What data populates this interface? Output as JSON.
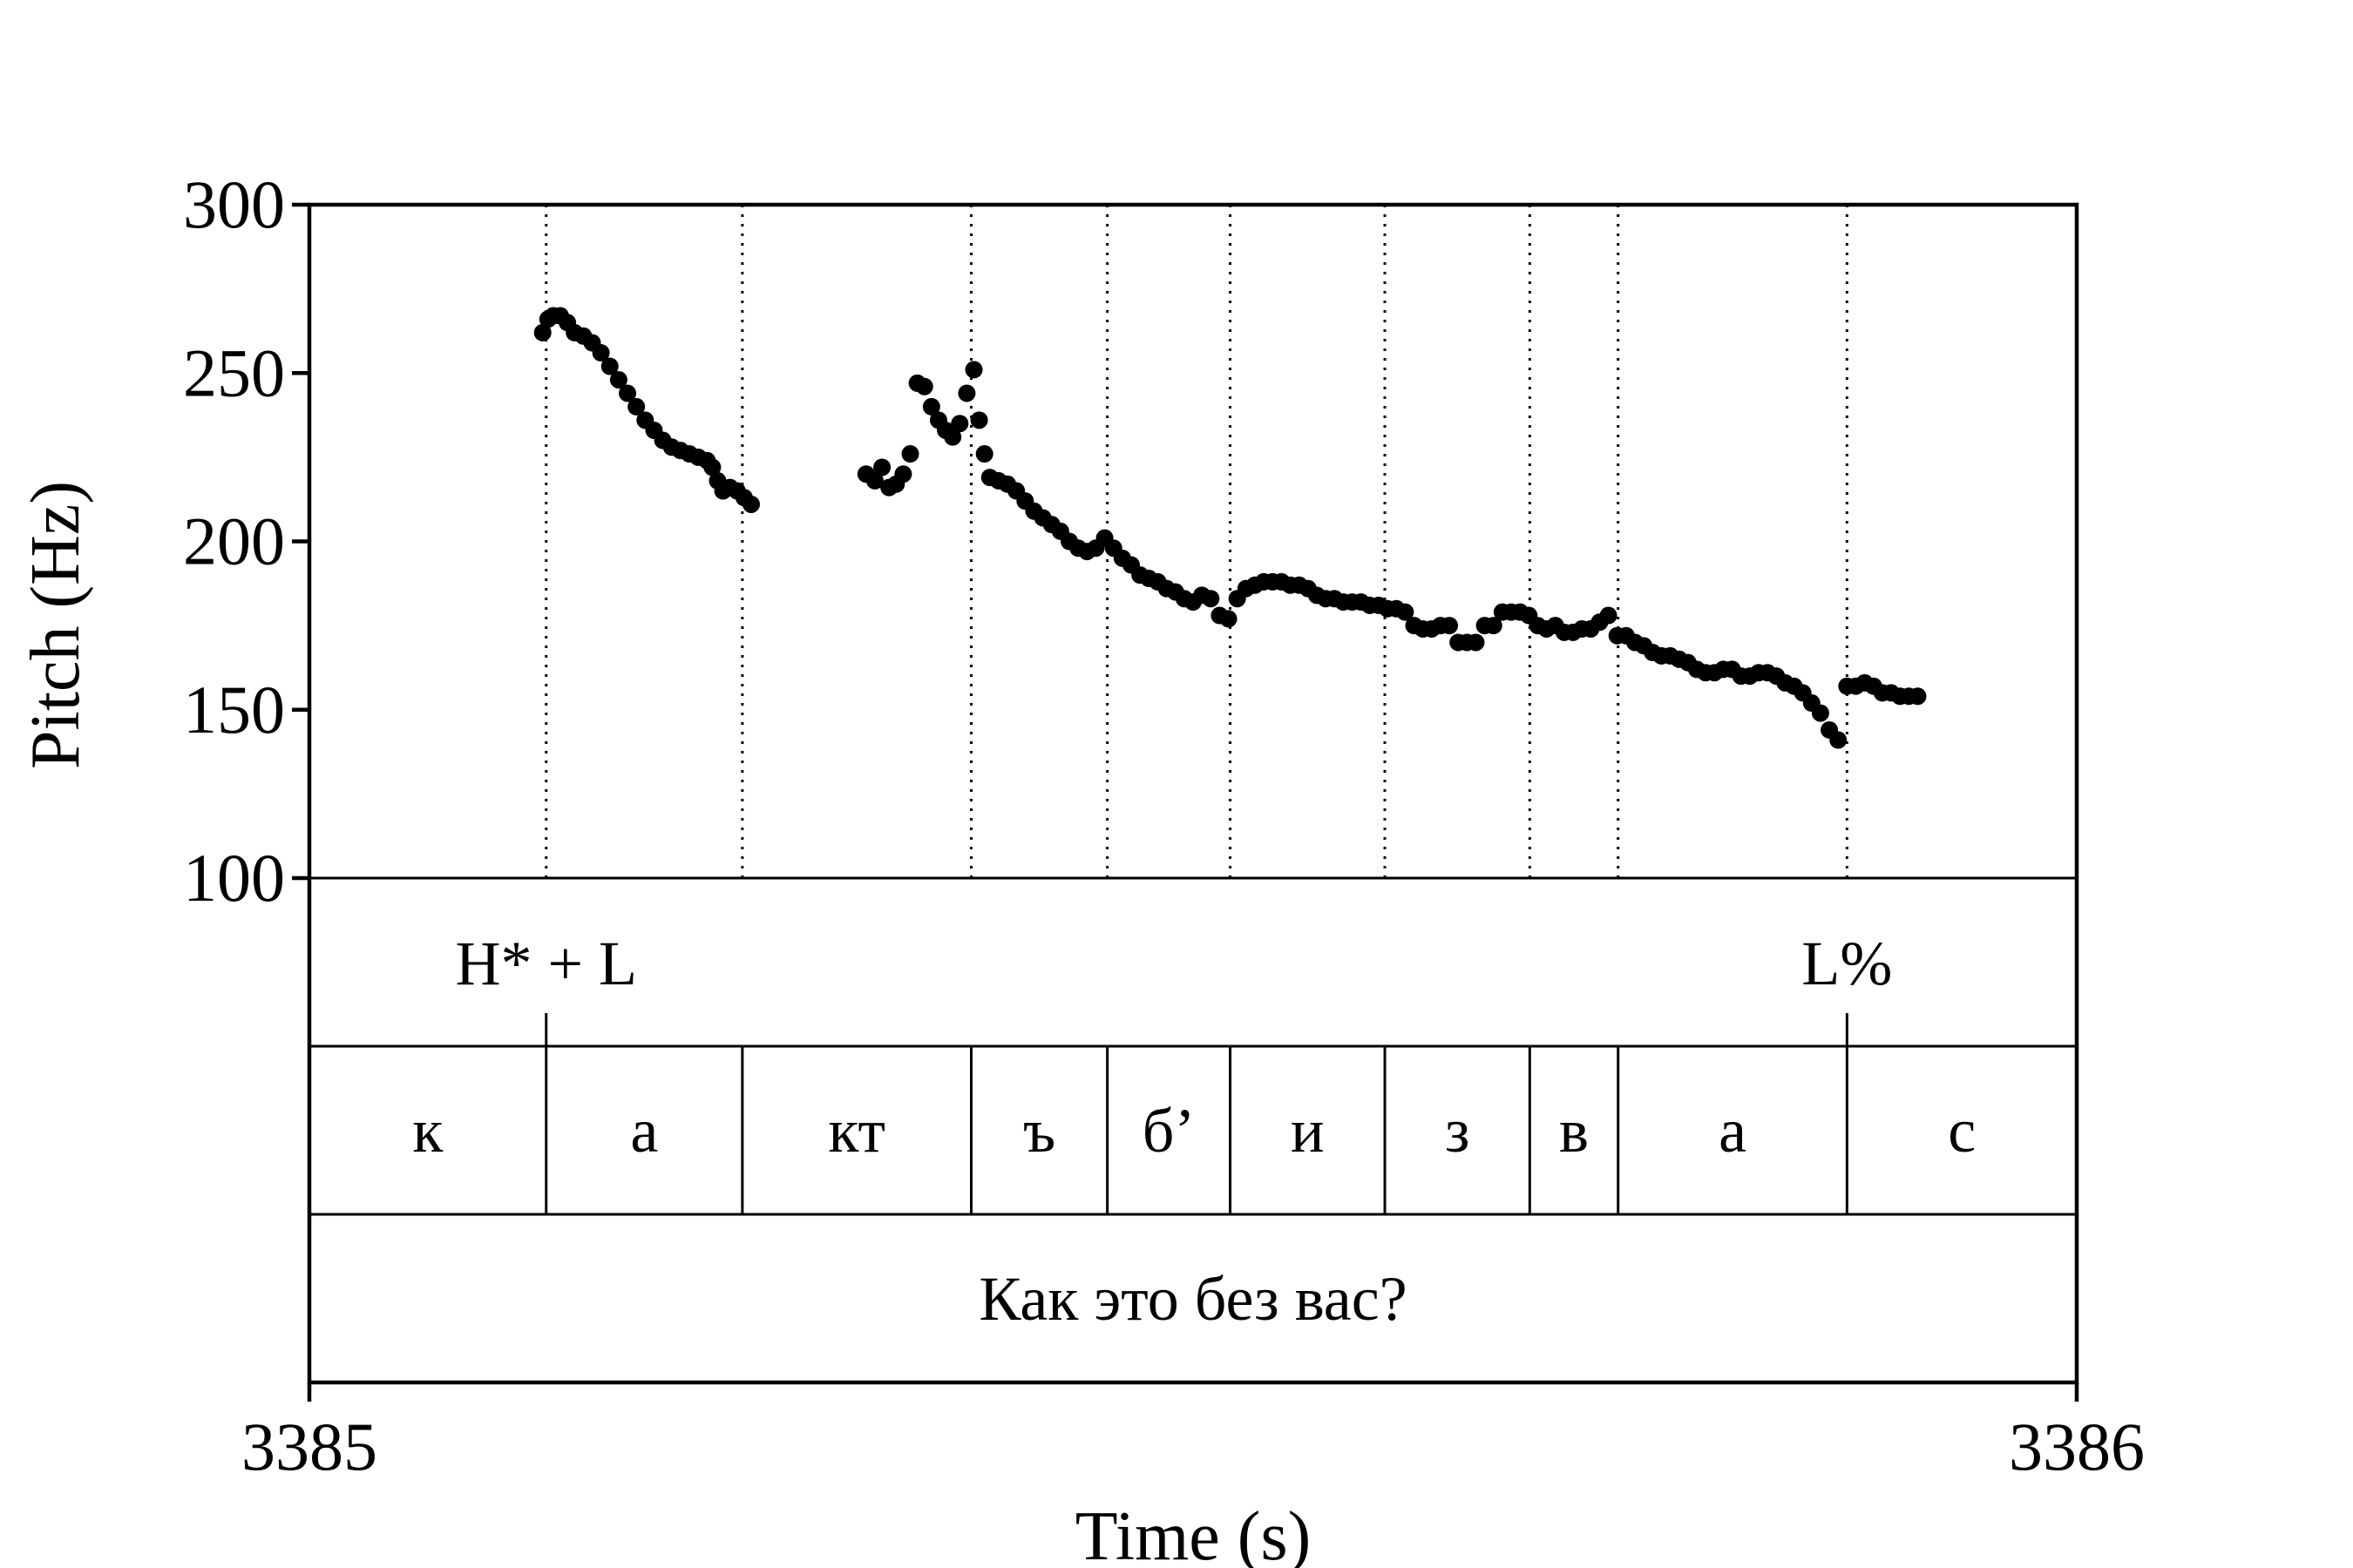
{
  "chart_data": {
    "type": "scatter",
    "title": "",
    "xlabel": "Time (s)",
    "ylabel": "Pitch (Hz)",
    "xlim": [
      3385,
      3386
    ],
    "ylim": [
      100,
      300
    ],
    "x_ticks": [
      "3385",
      "3386"
    ],
    "y_ticks": [
      "100",
      "150",
      "200",
      "250",
      "300"
    ],
    "grid": false,
    "point_color": "#000000",
    "pitch_contour": [
      {
        "t": 3385.132,
        "hz": 262
      },
      {
        "t": 3385.135,
        "hz": 266
      },
      {
        "t": 3385.138,
        "hz": 267
      },
      {
        "t": 3385.142,
        "hz": 267
      },
      {
        "t": 3385.146,
        "hz": 265
      },
      {
        "t": 3385.15,
        "hz": 262
      },
      {
        "t": 3385.155,
        "hz": 261
      },
      {
        "t": 3385.16,
        "hz": 259
      },
      {
        "t": 3385.165,
        "hz": 256
      },
      {
        "t": 3385.17,
        "hz": 252
      },
      {
        "t": 3385.175,
        "hz": 248
      },
      {
        "t": 3385.18,
        "hz": 244
      },
      {
        "t": 3385.185,
        "hz": 240
      },
      {
        "t": 3385.19,
        "hz": 236
      },
      {
        "t": 3385.195,
        "hz": 233
      },
      {
        "t": 3385.2,
        "hz": 230
      },
      {
        "t": 3385.205,
        "hz": 228
      },
      {
        "t": 3385.21,
        "hz": 227
      },
      {
        "t": 3385.215,
        "hz": 226
      },
      {
        "t": 3385.22,
        "hz": 225
      },
      {
        "t": 3385.225,
        "hz": 224
      },
      {
        "t": 3385.228,
        "hz": 222
      },
      {
        "t": 3385.231,
        "hz": 218
      },
      {
        "t": 3385.234,
        "hz": 215
      },
      {
        "t": 3385.238,
        "hz": 216
      },
      {
        "t": 3385.242,
        "hz": 215
      },
      {
        "t": 3385.246,
        "hz": 213
      },
      {
        "t": 3385.25,
        "hz": 211
      },
      {
        "t": 3385.315,
        "hz": 220
      },
      {
        "t": 3385.32,
        "hz": 218
      },
      {
        "t": 3385.324,
        "hz": 222
      },
      {
        "t": 3385.328,
        "hz": 216
      },
      {
        "t": 3385.332,
        "hz": 217
      },
      {
        "t": 3385.336,
        "hz": 220
      },
      {
        "t": 3385.34,
        "hz": 226
      },
      {
        "t": 3385.344,
        "hz": 247
      },
      {
        "t": 3385.348,
        "hz": 246
      },
      {
        "t": 3385.352,
        "hz": 240
      },
      {
        "t": 3385.356,
        "hz": 236
      },
      {
        "t": 3385.36,
        "hz": 233
      },
      {
        "t": 3385.364,
        "hz": 231
      },
      {
        "t": 3385.368,
        "hz": 235
      },
      {
        "t": 3385.372,
        "hz": 244
      },
      {
        "t": 3385.376,
        "hz": 251
      },
      {
        "t": 3385.379,
        "hz": 236
      },
      {
        "t": 3385.382,
        "hz": 226
      },
      {
        "t": 3385.385,
        "hz": 219
      },
      {
        "t": 3385.39,
        "hz": 218
      },
      {
        "t": 3385.395,
        "hz": 217
      },
      {
        "t": 3385.4,
        "hz": 215
      },
      {
        "t": 3385.405,
        "hz": 212
      },
      {
        "t": 3385.41,
        "hz": 209
      },
      {
        "t": 3385.415,
        "hz": 207
      },
      {
        "t": 3385.42,
        "hz": 205
      },
      {
        "t": 3385.425,
        "hz": 203
      },
      {
        "t": 3385.43,
        "hz": 200
      },
      {
        "t": 3385.435,
        "hz": 198
      },
      {
        "t": 3385.44,
        "hz": 197
      },
      {
        "t": 3385.445,
        "hz": 198
      },
      {
        "t": 3385.45,
        "hz": 201
      },
      {
        "t": 3385.455,
        "hz": 198
      },
      {
        "t": 3385.46,
        "hz": 195
      },
      {
        "t": 3385.465,
        "hz": 193
      },
      {
        "t": 3385.47,
        "hz": 190
      },
      {
        "t": 3385.475,
        "hz": 189
      },
      {
        "t": 3385.48,
        "hz": 188
      },
      {
        "t": 3385.485,
        "hz": 186
      },
      {
        "t": 3385.49,
        "hz": 185
      },
      {
        "t": 3385.495,
        "hz": 183
      },
      {
        "t": 3385.5,
        "hz": 182
      },
      {
        "t": 3385.505,
        "hz": 184
      },
      {
        "t": 3385.51,
        "hz": 183
      },
      {
        "t": 3385.515,
        "hz": 178
      },
      {
        "t": 3385.52,
        "hz": 177
      },
      {
        "t": 3385.525,
        "hz": 183
      },
      {
        "t": 3385.53,
        "hz": 186
      },
      {
        "t": 3385.535,
        "hz": 187
      },
      {
        "t": 3385.54,
        "hz": 188
      },
      {
        "t": 3385.545,
        "hz": 188
      },
      {
        "t": 3385.55,
        "hz": 188
      },
      {
        "t": 3385.555,
        "hz": 187
      },
      {
        "t": 3385.56,
        "hz": 187
      },
      {
        "t": 3385.565,
        "hz": 186
      },
      {
        "t": 3385.57,
        "hz": 184
      },
      {
        "t": 3385.575,
        "hz": 183
      },
      {
        "t": 3385.58,
        "hz": 183
      },
      {
        "t": 3385.585,
        "hz": 182
      },
      {
        "t": 3385.59,
        "hz": 182
      },
      {
        "t": 3385.595,
        "hz": 182
      },
      {
        "t": 3385.6,
        "hz": 181
      },
      {
        "t": 3385.605,
        "hz": 181
      },
      {
        "t": 3385.61,
        "hz": 180
      },
      {
        "t": 3385.615,
        "hz": 180
      },
      {
        "t": 3385.62,
        "hz": 179
      },
      {
        "t": 3385.625,
        "hz": 175
      },
      {
        "t": 3385.63,
        "hz": 174
      },
      {
        "t": 3385.635,
        "hz": 174
      },
      {
        "t": 3385.64,
        "hz": 175
      },
      {
        "t": 3385.645,
        "hz": 175
      },
      {
        "t": 3385.65,
        "hz": 170
      },
      {
        "t": 3385.655,
        "hz": 170
      },
      {
        "t": 3385.66,
        "hz": 170
      },
      {
        "t": 3385.665,
        "hz": 175
      },
      {
        "t": 3385.67,
        "hz": 175
      },
      {
        "t": 3385.675,
        "hz": 179
      },
      {
        "t": 3385.68,
        "hz": 179
      },
      {
        "t": 3385.685,
        "hz": 179
      },
      {
        "t": 3385.69,
        "hz": 178
      },
      {
        "t": 3385.695,
        "hz": 175
      },
      {
        "t": 3385.7,
        "hz": 174
      },
      {
        "t": 3385.705,
        "hz": 175
      },
      {
        "t": 3385.71,
        "hz": 173
      },
      {
        "t": 3385.715,
        "hz": 173
      },
      {
        "t": 3385.72,
        "hz": 174
      },
      {
        "t": 3385.725,
        "hz": 174
      },
      {
        "t": 3385.73,
        "hz": 176
      },
      {
        "t": 3385.735,
        "hz": 178
      },
      {
        "t": 3385.74,
        "hz": 172
      },
      {
        "t": 3385.745,
        "hz": 172
      },
      {
        "t": 3385.75,
        "hz": 170
      },
      {
        "t": 3385.755,
        "hz": 169
      },
      {
        "t": 3385.76,
        "hz": 167
      },
      {
        "t": 3385.765,
        "hz": 166
      },
      {
        "t": 3385.77,
        "hz": 166
      },
      {
        "t": 3385.775,
        "hz": 165
      },
      {
        "t": 3385.78,
        "hz": 164
      },
      {
        "t": 3385.785,
        "hz": 162
      },
      {
        "t": 3385.79,
        "hz": 161
      },
      {
        "t": 3385.795,
        "hz": 161
      },
      {
        "t": 3385.8,
        "hz": 162
      },
      {
        "t": 3385.805,
        "hz": 162
      },
      {
        "t": 3385.81,
        "hz": 160
      },
      {
        "t": 3385.815,
        "hz": 160
      },
      {
        "t": 3385.82,
        "hz": 161
      },
      {
        "t": 3385.825,
        "hz": 161
      },
      {
        "t": 3385.83,
        "hz": 160
      },
      {
        "t": 3385.835,
        "hz": 158
      },
      {
        "t": 3385.84,
        "hz": 157
      },
      {
        "t": 3385.845,
        "hz": 155
      },
      {
        "t": 3385.85,
        "hz": 152
      },
      {
        "t": 3385.855,
        "hz": 149
      },
      {
        "t": 3385.86,
        "hz": 144
      },
      {
        "t": 3385.865,
        "hz": 141
      },
      {
        "t": 3385.87,
        "hz": 157
      },
      {
        "t": 3385.875,
        "hz": 157
      },
      {
        "t": 3385.88,
        "hz": 158
      },
      {
        "t": 3385.885,
        "hz": 157
      },
      {
        "t": 3385.89,
        "hz": 155
      },
      {
        "t": 3385.895,
        "hz": 155
      },
      {
        "t": 3385.9,
        "hz": 154
      },
      {
        "t": 3385.905,
        "hz": 154
      },
      {
        "t": 3385.91,
        "hz": 154
      }
    ],
    "tone_tier": {
      "labels": [
        {
          "text": "H* + L",
          "t": 3385.134
        },
        {
          "text": "L%",
          "t": 3385.87
        }
      ],
      "boundaries": [
        3385.134,
        3385.87
      ]
    },
    "segment_tier": {
      "boundaries": [
        3385.134,
        3385.245,
        3385.3745,
        3385.4515,
        3385.521,
        3385.6085,
        3385.6905,
        3385.7405,
        3385.87
      ],
      "segments": [
        {
          "label": "к",
          "start": 3385.0,
          "end": 3385.134
        },
        {
          "label": "а",
          "start": 3385.134,
          "end": 3385.245
        },
        {
          "label": "кт",
          "start": 3385.245,
          "end": 3385.3745
        },
        {
          "label": "ъ",
          "start": 3385.3745,
          "end": 3385.4515
        },
        {
          "label": "б’",
          "start": 3385.4515,
          "end": 3385.521
        },
        {
          "label": "и",
          "start": 3385.521,
          "end": 3385.6085
        },
        {
          "label": "з",
          "start": 3385.6085,
          "end": 3385.6905
        },
        {
          "label": "в",
          "start": 3385.6905,
          "end": 3385.7405
        },
        {
          "label": "а",
          "start": 3385.7405,
          "end": 3385.87
        },
        {
          "label": "с",
          "start": 3385.87,
          "end": 3386.0
        }
      ]
    },
    "sentence_tier": {
      "text": "Как это без вас?"
    }
  }
}
